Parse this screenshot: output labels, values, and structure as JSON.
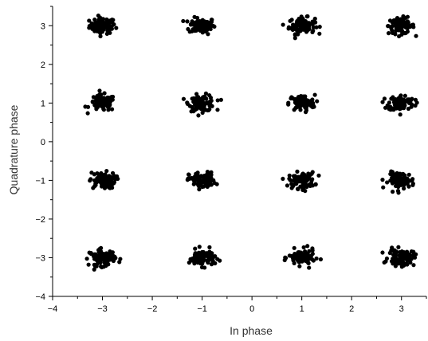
{
  "chart_data": {
    "type": "scatter",
    "title": "",
    "xlabel": "In phase",
    "ylabel": "Quadrature phase",
    "xlim": [
      -4,
      3.5
    ],
    "ylim": [
      -4,
      3.5
    ],
    "x_ticks": [
      -4,
      -3,
      -2,
      -1,
      0,
      1,
      2,
      3
    ],
    "y_ticks": [
      -4,
      -3,
      -2,
      -1,
      0,
      1,
      2,
      3
    ],
    "grid": false,
    "legend": "none",
    "marker_color": "#000000",
    "description_of_points": "16-QAM constellation clusters",
    "clusters": [
      {
        "x": -3,
        "y": 3
      },
      {
        "x": -1,
        "y": 3
      },
      {
        "x": 1,
        "y": 3
      },
      {
        "x": 3,
        "y": 3
      },
      {
        "x": -3,
        "y": 1
      },
      {
        "x": -1,
        "y": 1
      },
      {
        "x": 1,
        "y": 1
      },
      {
        "x": 3,
        "y": 1
      },
      {
        "x": -3,
        "y": -1
      },
      {
        "x": -1,
        "y": -1
      },
      {
        "x": 1,
        "y": -1
      },
      {
        "x": 3,
        "y": -1
      },
      {
        "x": -3,
        "y": -3
      },
      {
        "x": -1,
        "y": -3
      },
      {
        "x": 1,
        "y": -3
      },
      {
        "x": 3,
        "y": -3
      }
    ],
    "cluster_spread": 0.13,
    "points_per_cluster": 90
  }
}
